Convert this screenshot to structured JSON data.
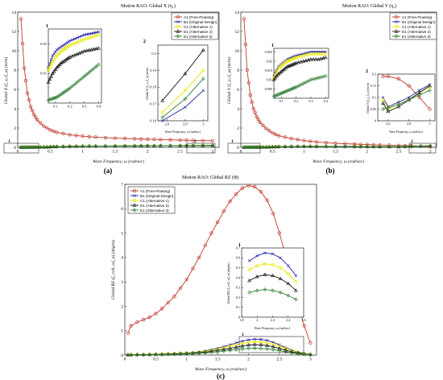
{
  "colors": {
    "A1": "#c0392b",
    "B1": "#1f1fa8",
    "C1": "#e8e800",
    "D1": "#111111",
    "E1": "#2e7d32"
  },
  "legend_entries": [
    {
      "key": "A1",
      "label": "A1 (Free-Floating)"
    },
    {
      "key": "B1",
      "label": "B1 (Original Design)"
    },
    {
      "key": "C1",
      "label": "C1 (Alternative 1)"
    },
    {
      "key": "D1",
      "label": "D1 (Alternative 2)"
    },
    {
      "key": "E1",
      "label": "E1 (Alternative 3)"
    }
  ],
  "panels": {
    "a": {
      "title": "Motion RAO: Global X (η₁)",
      "ylabel": "Global X (ζ_x₀/ζ_a) (m/m)",
      "xlabel": "Wave Frequency, ω (rad/sec)",
      "caption": "(a)",
      "ticks_x": [
        "0",
        "0.5",
        "1",
        "1.5",
        "2",
        "2.5",
        "3"
      ],
      "ticks_y": [
        "0",
        "2",
        "4",
        "6",
        "8",
        "10",
        "12",
        "14"
      ],
      "box_labels": [
        "1",
        "2"
      ],
      "inset1": {
        "label": "1",
        "ticks_x": [
          "0.1",
          "0.2",
          "0.3",
          "0.4"
        ],
        "ticks_y": [
          "0.01",
          "0.02"
        ]
      },
      "inset2": {
        "label": "2",
        "ylabel": "Global X (ζ_x₀/ζ_a) (m/m)",
        "xlabel": "Wave Frequency, ω (rad/sec)",
        "ticks_x": [
          "2.6",
          "2.8",
          "3"
        ],
        "ticks_y": [
          "0.16",
          "0.17",
          "0.18",
          "0.19",
          "0.2"
        ]
      }
    },
    "b": {
      "title": "Motion RAO: Global Y (η₂)",
      "ylabel": "Global Y (ζ_y₀/ζ_a) (m/m)",
      "xlabel": "Wave Frequency, ω (rad/sec)",
      "caption": "(b)",
      "ticks_x": [
        "0",
        "0.5",
        "1",
        "1.5",
        "2",
        "2.5",
        "3"
      ],
      "ticks_y": [
        "0",
        "2",
        "4",
        "6",
        "8",
        "10",
        "12",
        "14"
      ],
      "box_labels": [
        "1",
        "2"
      ],
      "inset1": {
        "label": "1",
        "ticks_x": [
          "0.1",
          "0.2",
          "0.3",
          "0.4"
        ],
        "ticks_y": [
          "0.005",
          "0.01",
          "0.015",
          "0.02",
          "0.025"
        ]
      },
      "inset2": {
        "label": "2",
        "ylabel": "Global Y (ζ_y₀/ζ_a) (m/m)",
        "xlabel": "Wave Frequency, ω (rad/sec)",
        "ticks_x": [
          "2.6",
          "2.8",
          "3"
        ],
        "ticks_y": [
          "0",
          "0.05",
          "0.1",
          "0.15",
          "0.2"
        ]
      }
    },
    "c": {
      "title": "Motion RAO: Global RZ (Φ)",
      "ylabel": "Global RZ (ζ_rz/k_wζ_a) (deg/m)",
      "xlabel": "Wave Frequency, ω (rad/sec)",
      "caption": "(c)",
      "ticks_x": [
        "0",
        "0.5",
        "1",
        "1.5",
        "2",
        "2.5",
        "3"
      ],
      "ticks_y": [
        "0",
        "1",
        "2",
        "3",
        "4",
        "5",
        "6",
        "7"
      ],
      "box_labels": [
        "1"
      ],
      "inset1": {
        "label": "1",
        "ylabel": "Global RZ (ζ_rz/k_wζ_a) (deg/m)",
        "xlabel": "Wave Frequency, ω (rad/sec)",
        "ticks_x": [
          "1.8",
          "2",
          "2.2",
          "2.4",
          "2.6"
        ],
        "ticks_y": [
          "0",
          "0.1",
          "0.2",
          "0.3",
          "0.4",
          "0.5",
          "0.6",
          "0.7"
        ]
      }
    }
  },
  "chart_data": [
    {
      "type": "line",
      "title": "Motion RAO: Global X (η₁)",
      "xlabel": "Wave Frequency, ω (rad/sec)",
      "ylabel": "Global X (ζ_x₀/ζ_a) (m/m)",
      "xlim": [
        0,
        3.1
      ],
      "ylim": [
        0,
        14
      ],
      "x": [
        0.05,
        0.1,
        0.15,
        0.2,
        0.25,
        0.3,
        0.4,
        0.5,
        0.6,
        0.8,
        1.0,
        1.2,
        1.5,
        1.8,
        2.0,
        2.2,
        2.5,
        2.7,
        3.0
      ],
      "series": [
        {
          "name": "A1 (Free-Floating)",
          "values": [
            13.3,
            8.2,
            5.6,
            4.2,
            3.4,
            2.85,
            2.2,
            1.8,
            1.55,
            1.3,
            1.15,
            1.05,
            0.95,
            0.88,
            0.84,
            0.8,
            0.75,
            0.72,
            0.68
          ]
        },
        {
          "name": "B1 (Original Design)",
          "values": [
            0.01,
            0.015,
            0.018,
            0.02,
            0.022,
            0.023,
            0.03,
            0.05,
            0.08,
            0.1,
            0.12,
            0.13,
            0.14,
            0.15,
            0.16,
            0.165,
            0.17,
            0.175,
            0.18
          ]
        },
        {
          "name": "C1 (Alternative 1)",
          "values": [
            0.009,
            0.013,
            0.016,
            0.018,
            0.02,
            0.021,
            0.03,
            0.05,
            0.08,
            0.1,
            0.12,
            0.13,
            0.14,
            0.15,
            0.16,
            0.168,
            0.175,
            0.18,
            0.19
          ]
        },
        {
          "name": "D1 (Alternative 2)",
          "values": [
            0.007,
            0.01,
            0.012,
            0.014,
            0.015,
            0.016,
            0.03,
            0.05,
            0.08,
            0.1,
            0.12,
            0.13,
            0.14,
            0.15,
            0.16,
            0.172,
            0.18,
            0.188,
            0.2
          ]
        },
        {
          "name": "E1 (Alternative 3)",
          "values": [
            0.001,
            0.002,
            0.003,
            0.004,
            0.005,
            0.006,
            0.02,
            0.04,
            0.07,
            0.09,
            0.11,
            0.12,
            0.13,
            0.14,
            0.15,
            0.16,
            0.165,
            0.17,
            0.185
          ]
        }
      ],
      "legend": "top-right"
    },
    {
      "type": "line",
      "title": "Motion RAO: Global Y (η₂)",
      "xlabel": "Wave Frequency, ω (rad/sec)",
      "ylabel": "Global Y (ζ_y₀/ζ_a) (m/m)",
      "xlim": [
        0,
        3.1
      ],
      "ylim": [
        0,
        14
      ],
      "x": [
        0.05,
        0.1,
        0.15,
        0.2,
        0.25,
        0.3,
        0.4,
        0.5,
        0.6,
        0.8,
        1.0,
        1.2,
        1.5,
        1.8,
        2.0,
        2.2,
        2.5,
        2.7,
        3.0
      ],
      "series": [
        {
          "name": "A1 (Free-Floating)",
          "values": [
            13.3,
            8.0,
            5.4,
            4.0,
            3.2,
            2.6,
            1.95,
            1.5,
            1.2,
            0.9,
            0.7,
            0.55,
            0.42,
            0.33,
            0.28,
            0.24,
            0.19,
            0.17,
            0.05
          ]
        },
        {
          "name": "B1 (Original Design)",
          "values": [
            0.012,
            0.016,
            0.018,
            0.02,
            0.021,
            0.022,
            0.03,
            0.05,
            0.07,
            0.09,
            0.1,
            0.1,
            0.1,
            0.1,
            0.09,
            0.08,
            0.07,
            0.1,
            0.15
          ]
        },
        {
          "name": "C1 (Alternative 1)",
          "values": [
            0.011,
            0.015,
            0.017,
            0.019,
            0.02,
            0.021,
            0.03,
            0.05,
            0.07,
            0.09,
            0.1,
            0.1,
            0.1,
            0.09,
            0.08,
            0.07,
            0.06,
            0.09,
            0.14
          ]
        },
        {
          "name": "D1 (Alternative 2)",
          "values": [
            0.01,
            0.013,
            0.015,
            0.017,
            0.018,
            0.019,
            0.03,
            0.05,
            0.07,
            0.09,
            0.1,
            0.1,
            0.09,
            0.08,
            0.07,
            0.06,
            0.05,
            0.1,
            0.15
          ]
        },
        {
          "name": "E1 (Alternative 3)",
          "values": [
            0.001,
            0.002,
            0.003,
            0.005,
            0.007,
            0.009,
            0.02,
            0.04,
            0.06,
            0.08,
            0.09,
            0.09,
            0.08,
            0.07,
            0.06,
            0.06,
            0.07,
            0.09,
            0.12
          ]
        }
      ],
      "legend": "top-right"
    },
    {
      "type": "line",
      "title": "Motion RAO: Global RZ (Φ)",
      "xlabel": "Wave Frequency, ω (rad/sec)",
      "ylabel": "Global RZ (ζ_rz/k_wζ_a) (deg/m)",
      "xlim": [
        0,
        3.1
      ],
      "ylim": [
        0,
        7
      ],
      "x": [
        0.05,
        0.1,
        0.2,
        0.3,
        0.4,
        0.5,
        0.6,
        0.7,
        0.8,
        0.9,
        1.0,
        1.1,
        1.2,
        1.3,
        1.4,
        1.5,
        1.6,
        1.7,
        1.8,
        1.9,
        2.0,
        2.1,
        2.2,
        2.3,
        2.4,
        2.5,
        2.6,
        2.7,
        2.8,
        2.9,
        3.0
      ],
      "series": [
        {
          "name": "A1 (Free-Floating)",
          "values": [
            0.9,
            1.2,
            1.35,
            1.45,
            1.55,
            1.7,
            1.9,
            2.15,
            2.4,
            2.75,
            3.1,
            3.55,
            4.0,
            4.5,
            5.0,
            5.45,
            5.9,
            6.3,
            6.6,
            6.85,
            6.95,
            6.9,
            6.7,
            6.35,
            5.8,
            5.0,
            4.1,
            3.1,
            2.1,
            1.2,
            0.5
          ]
        },
        {
          "name": "B1 (Original Design)",
          "values": [
            0.01,
            0.01,
            0.02,
            0.02,
            0.03,
            0.03,
            0.04,
            0.05,
            0.06,
            0.07,
            0.08,
            0.1,
            0.13,
            0.17,
            0.22,
            0.28,
            0.35,
            0.42,
            0.5,
            0.57,
            0.62,
            0.65,
            0.64,
            0.6,
            0.52,
            0.42,
            0.3,
            0.2,
            0.12,
            0.06,
            0.03
          ]
        },
        {
          "name": "C1 (Alternative 1)",
          "values": [
            0.01,
            0.01,
            0.02,
            0.02,
            0.03,
            0.03,
            0.04,
            0.05,
            0.06,
            0.07,
            0.08,
            0.09,
            0.12,
            0.15,
            0.19,
            0.24,
            0.3,
            0.36,
            0.42,
            0.48,
            0.52,
            0.54,
            0.53,
            0.5,
            0.44,
            0.36,
            0.27,
            0.18,
            0.11,
            0.05,
            0.03
          ]
        },
        {
          "name": "D1 (Alternative 2)",
          "values": [
            0.01,
            0.01,
            0.02,
            0.02,
            0.02,
            0.03,
            0.03,
            0.04,
            0.05,
            0.06,
            0.07,
            0.08,
            0.1,
            0.12,
            0.15,
            0.19,
            0.23,
            0.27,
            0.32,
            0.37,
            0.41,
            0.43,
            0.42,
            0.39,
            0.34,
            0.27,
            0.2,
            0.13,
            0.08,
            0.04,
            0.02
          ]
        },
        {
          "name": "E1 (Alternative 3)",
          "values": [
            0.005,
            0.01,
            0.01,
            0.01,
            0.02,
            0.02,
            0.02,
            0.03,
            0.03,
            0.04,
            0.05,
            0.06,
            0.07,
            0.09,
            0.11,
            0.13,
            0.16,
            0.19,
            0.22,
            0.25,
            0.27,
            0.28,
            0.27,
            0.25,
            0.22,
            0.18,
            0.13,
            0.09,
            0.05,
            0.03,
            0.01
          ]
        }
      ],
      "legend": "top-left"
    }
  ]
}
